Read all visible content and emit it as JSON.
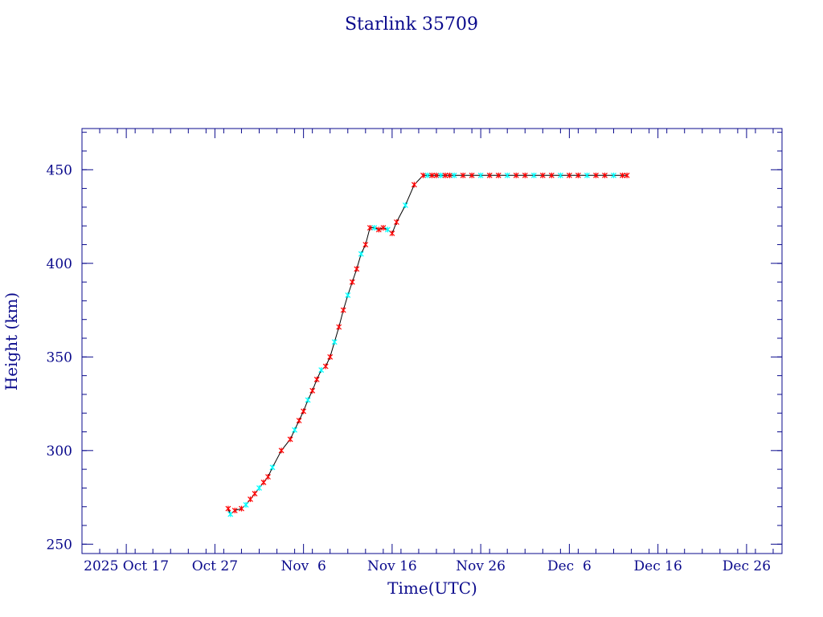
{
  "chart_data": {
    "type": "line",
    "title": "Starlink 35709",
    "xlabel": "Time(UTC)",
    "ylabel": "Height (km)",
    "ylim": [
      245,
      472
    ],
    "xlim": [
      "2025-10-12",
      "2025-12-30"
    ],
    "x_ticks": [
      {
        "date": "2025-10-17",
        "label": "2025 Oct 17"
      },
      {
        "date": "2025-10-27",
        "label": "Oct 27"
      },
      {
        "date": "2025-11-06",
        "label": "Nov  6"
      },
      {
        "date": "2025-11-16",
        "label": "Nov 16"
      },
      {
        "date": "2025-11-26",
        "label": "Nov 26"
      },
      {
        "date": "2025-12-06",
        "label": "Dec  6"
      },
      {
        "date": "2025-12-16",
        "label": "Dec 16"
      },
      {
        "date": "2025-12-26",
        "label": "Dec 26"
      }
    ],
    "y_ticks": [
      250,
      300,
      350,
      400,
      450
    ],
    "grid": false,
    "colors": {
      "axis": "#0a0a8c",
      "line": "#000000",
      "marker_primary": "#ff0000",
      "marker_alt": "#00ffff"
    },
    "series": [
      {
        "x": [
          "2025-10-28T12:00",
          "2025-10-28T18:00",
          "2025-10-29T06:00",
          "2025-10-30T00:00",
          "2025-10-30T12:00",
          "2025-10-31T00:00",
          "2025-10-31T12:00",
          "2025-11-01T00:00",
          "2025-11-01T12:00",
          "2025-11-02T00:00",
          "2025-11-02T12:00",
          "2025-11-03T12:00",
          "2025-11-04T12:00",
          "2025-11-05T00:00",
          "2025-11-05T12:00",
          "2025-11-06T00:00",
          "2025-11-06T12:00",
          "2025-11-07T00:00",
          "2025-11-07T12:00",
          "2025-11-08T00:00",
          "2025-11-08T12:00",
          "2025-11-09T00:00",
          "2025-11-09T12:00",
          "2025-11-10T00:00",
          "2025-11-10T12:00",
          "2025-11-11T00:00",
          "2025-11-11T12:00",
          "2025-11-12T00:00",
          "2025-11-12T12:00",
          "2025-11-13T00:00",
          "2025-11-13T12:00",
          "2025-11-14T00:00",
          "2025-11-14T12:00",
          "2025-11-15T00:00",
          "2025-11-15T12:00",
          "2025-11-16T00:00",
          "2025-11-16T12:00",
          "2025-11-17T12:00",
          "2025-11-18T12:00",
          "2025-11-19T12:00",
          "2025-11-20T00:00",
          "2025-11-20T12:00",
          "2025-11-21T00:00",
          "2025-11-21T12:00",
          "2025-11-22T00:00",
          "2025-11-22T12:00",
          "2025-11-23T00:00",
          "2025-11-24T00:00",
          "2025-11-25T00:00",
          "2025-11-26T00:00",
          "2025-11-27T00:00",
          "2025-11-28T00:00",
          "2025-11-29T00:00",
          "2025-11-30T00:00",
          "2025-12-01T00:00",
          "2025-12-02T00:00",
          "2025-12-03T00:00",
          "2025-12-04T00:00",
          "2025-12-05T00:00",
          "2025-12-06T00:00",
          "2025-12-07T00:00",
          "2025-12-08T00:00",
          "2025-12-09T00:00",
          "2025-12-10T00:00",
          "2025-12-11T00:00",
          "2025-12-12T00:00",
          "2025-12-12T12:00"
        ],
        "y": [
          269,
          266,
          268,
          269,
          271,
          274,
          277,
          280,
          283,
          286,
          291,
          300,
          306,
          311,
          316,
          321,
          327,
          332,
          338,
          343,
          345,
          350,
          358,
          366,
          375,
          383,
          390,
          397,
          405,
          410,
          419,
          419,
          418,
          419,
          418,
          416,
          422,
          431,
          442,
          447,
          447,
          447,
          447,
          447,
          447,
          447,
          447,
          447,
          447,
          447,
          447,
          447,
          447,
          447,
          447,
          447,
          447,
          447,
          447,
          447,
          447,
          447,
          447,
          447,
          447,
          447,
          447
        ]
      }
    ]
  }
}
